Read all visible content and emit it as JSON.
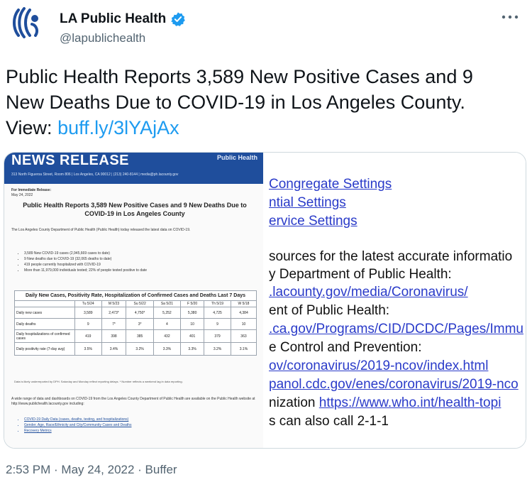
{
  "header": {
    "display_name": "LA Public Health",
    "handle": "@lapublichealth"
  },
  "tweet": {
    "line1": "Public Health Reports 3,589 New Positive Cases and 9",
    "line2": "New Deaths Due to COVID-19 in Los Angeles County.",
    "view_label": "View:",
    "link": "buff.ly/3lYAjAx"
  },
  "doc": {
    "banner": "NEWS RELEASE",
    "banner_right": "Public Health",
    "address": "313 North Figueroa Street, Room 806  |  Los Angeles, CA 90012  |  (213) 240-8144  |  media@ph.lacounty.gov",
    "release_label": "For Immediate Release:",
    "release_date": "May 24, 2022",
    "title": "Public Health Reports 3,589 New Positive Cases and 9 New Deaths Due to COVID-19 in Los Angeles County",
    "intro": "The Los Angeles County Department of Public Health (Public Health) today released the latest data on COVID-19.",
    "bullets": [
      "3,589 New COVID-19 cases (2,945,669 cases to date)",
      "9 New deaths due to COVID-19 (32,065 deaths to date)",
      "419 people currently hospitalized with COVID-19",
      "More than 11,979,000 individuals tested; 22% of people tested positive to date"
    ],
    "table": {
      "caption": "Daily New Cases, Positivity Rate, Hospitalization of Confirmed Cases and Deaths Last 7 Days",
      "columns": [
        "Tu 5/24",
        "M 5/23",
        "Su 5/22",
        "Sa 5/21",
        "F 5/20",
        "Th 5/19",
        "W 5/18"
      ],
      "rows": [
        {
          "label": "Daily new cases",
          "values": [
            "3,589",
            "2,473*",
            "4,750*",
            "5,252",
            "5,380",
            "4,725",
            "4,384"
          ]
        },
        {
          "label": "Daily deaths",
          "values": [
            "9",
            "7*",
            "3*",
            "4",
            "10",
            "9",
            "10"
          ]
        },
        {
          "label": "Daily hospitalizations of confirmed cases",
          "values": [
            "419",
            "398",
            "385",
            "432",
            "401",
            "379",
            "363"
          ]
        },
        {
          "label": "Daily positivity rate (7-day avg)",
          "values": [
            "3.5%",
            "3.4%",
            "3.2%",
            "3.3%",
            "3.3%",
            "3.2%",
            "3.1%"
          ]
        }
      ]
    },
    "note": "Data is likely underreported by DPH. Saturday and Monday reflect reporting delays.  * Number reflects a weekend lag in data reporting.",
    "para2": "A wide range of data and dashboards on COVID-19 from the Los Angeles County Department of Public Health are available on the Public Health website at http://www.publichealth.lacounty.gov including:",
    "links": [
      "COVID-19 Daily Data (cases, deaths, testing, and hospitalizations)",
      "Gender, Age, Race/Ethnicity and City/Community Cases and Deaths",
      "Recovery Metrics"
    ]
  },
  "crop_lines": [
    {
      "text": "Congregate Settings",
      "link": true
    },
    {
      "text": "ntial Settings",
      "link": true
    },
    {
      "text": "ervice Settings",
      "link": true
    },
    {
      "text": "sources for the latest accurate informatio",
      "link": false
    },
    {
      "text": "y Department of Public Health:",
      "link": false
    },
    {
      "text": ".lacounty.gov/media/Coronavirus/",
      "link": true
    },
    {
      "text": "ent of Public Health:",
      "link": false
    },
    {
      "text": ".ca.gov/Programs/CID/DCDC/Pages/Immu",
      "link": true
    },
    {
      "text": "e Control and Prevention:",
      "link": false
    },
    {
      "text": "ov/coronavirus/2019-ncov/index.html",
      "link": true
    },
    {
      "text": "panol.cdc.gov/enes/coronavirus/2019-nco",
      "link": true
    },
    {
      "text": "nization ",
      "link": false,
      "tail": "https://www.who.int/health-topi"
    },
    {
      "text": "s can also call 2-1-1",
      "link": false
    }
  ],
  "footer": {
    "timestamp": "2:53 PM · May 24, 2022 · Buffer"
  },
  "colors": {
    "link": "#1d9bf0",
    "verified": "#1d9bf0",
    "banner": "#1f4e9c"
  },
  "icons": [
    "lapublichealth-logo-icon",
    "verified-badge-icon",
    "more-options-icon"
  ]
}
